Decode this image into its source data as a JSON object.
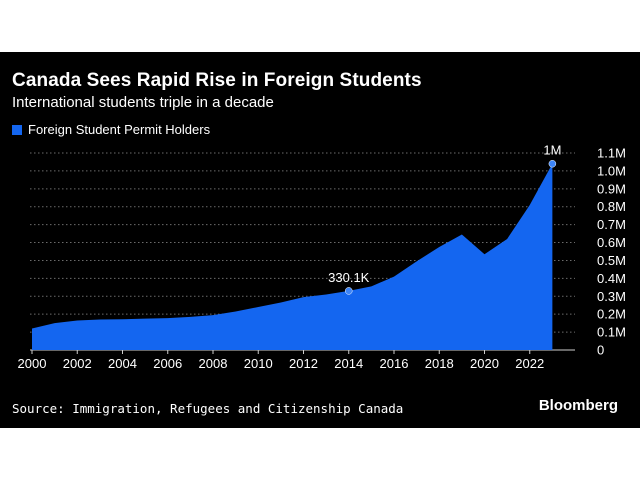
{
  "title": "Canada Sees Rapid Rise in Foreign Students",
  "subtitle": "International students triple in a decade",
  "source": "Source: Immigration, Refugees and Citizenship Canada",
  "brand": "Bloomberg",
  "colors": {
    "fill": "#1466f0",
    "background": "#000000",
    "text": "#ffffff"
  },
  "chart_data": {
    "type": "area",
    "title": "Canada Sees Rapid Rise in Foreign Students",
    "subtitle": "International students triple in a decade",
    "xlabel": "",
    "ylabel": "",
    "series": [
      {
        "name": "Foreign Student Permit Holders",
        "x": [
          2000,
          2001,
          2002,
          2003,
          2004,
          2005,
          2006,
          2007,
          2008,
          2009,
          2010,
          2011,
          2012,
          2013,
          2014,
          2015,
          2016,
          2017,
          2018,
          2019,
          2020,
          2021,
          2022,
          2023
        ],
        "values": [
          0.12,
          0.15,
          0.165,
          0.17,
          0.172,
          0.175,
          0.178,
          0.185,
          0.195,
          0.215,
          0.24,
          0.265,
          0.295,
          0.31,
          0.33,
          0.355,
          0.41,
          0.495,
          0.575,
          0.645,
          0.535,
          0.62,
          0.81,
          1.04
        ]
      }
    ],
    "xticks": [
      "2000",
      "2002",
      "2004",
      "2006",
      "2008",
      "2010",
      "2012",
      "2014",
      "2016",
      "2018",
      "2020",
      "2022"
    ],
    "yticks": [
      "0",
      "0.1M",
      "0.2M",
      "0.3M",
      "0.4M",
      "0.5M",
      "0.6M",
      "0.7M",
      "0.8M",
      "0.9M",
      "1.0M",
      "1.1M"
    ],
    "ylim": [
      0,
      1.1
    ],
    "xlim": [
      2000,
      2024
    ],
    "grid": true,
    "legend_position": "top-left",
    "annotations": [
      {
        "x": 2014,
        "y": 0.3301,
        "label": "330.1K"
      },
      {
        "x": 2023,
        "y": 1.04,
        "label": "1M"
      }
    ]
  }
}
